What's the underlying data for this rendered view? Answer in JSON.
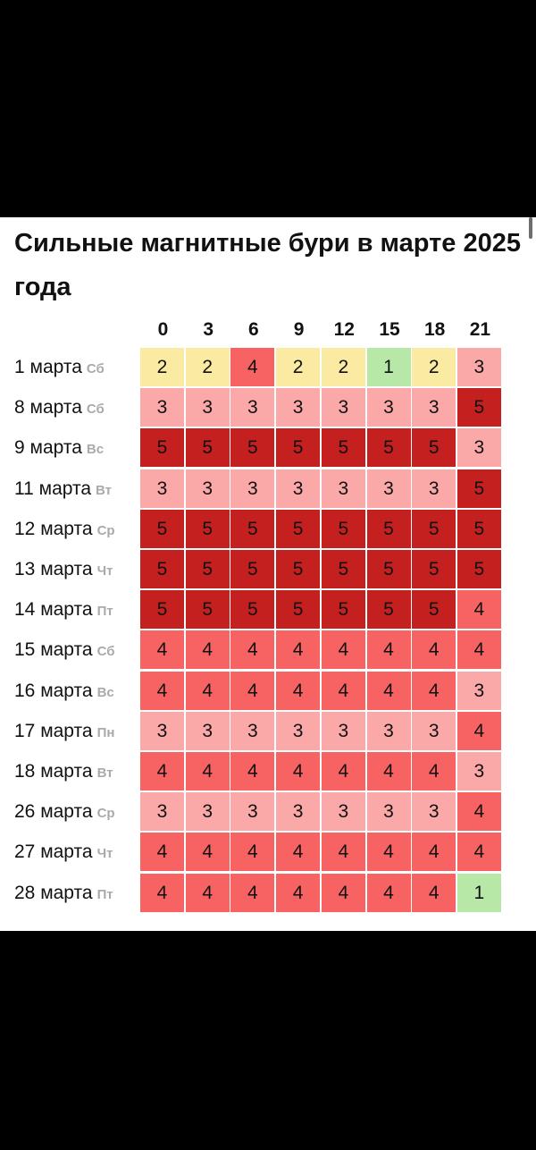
{
  "title": "Сильные магнитные бури в марте 2025 года",
  "colors": {
    "kp1": "#b8e8a8",
    "kp2": "#faeaa2",
    "kp3": "#fba8a8",
    "kp4": "#f76363",
    "kp5": "#c42020"
  },
  "chart_data": {
    "type": "heatmap",
    "title": "Сильные магнитные бури в марте 2025 года",
    "x": [
      "0",
      "3",
      "6",
      "9",
      "12",
      "15",
      "18",
      "21"
    ],
    "rows": [
      {
        "date": "1 марта",
        "dow": "Сб",
        "values": [
          2,
          2,
          4,
          2,
          2,
          1,
          2,
          3
        ]
      },
      {
        "date": "8 марта",
        "dow": "Сб",
        "values": [
          3,
          3,
          3,
          3,
          3,
          3,
          3,
          5
        ]
      },
      {
        "date": "9 марта",
        "dow": "Вс",
        "values": [
          5,
          5,
          5,
          5,
          5,
          5,
          5,
          3
        ]
      },
      {
        "date": "11 марта",
        "dow": "Вт",
        "values": [
          3,
          3,
          3,
          3,
          3,
          3,
          3,
          5
        ]
      },
      {
        "date": "12 марта",
        "dow": "Ср",
        "values": [
          5,
          5,
          5,
          5,
          5,
          5,
          5,
          5
        ]
      },
      {
        "date": "13 марта",
        "dow": "Чт",
        "values": [
          5,
          5,
          5,
          5,
          5,
          5,
          5,
          5
        ]
      },
      {
        "date": "14 марта",
        "dow": "Пт",
        "values": [
          5,
          5,
          5,
          5,
          5,
          5,
          5,
          4
        ]
      },
      {
        "date": "15 марта",
        "dow": "Сб",
        "values": [
          4,
          4,
          4,
          4,
          4,
          4,
          4,
          4
        ]
      },
      {
        "date": "16 марта",
        "dow": "Вс",
        "values": [
          4,
          4,
          4,
          4,
          4,
          4,
          4,
          3
        ]
      },
      {
        "date": "17 марта",
        "dow": "Пн",
        "values": [
          3,
          3,
          3,
          3,
          3,
          3,
          3,
          4
        ]
      },
      {
        "date": "18 марта",
        "dow": "Вт",
        "values": [
          4,
          4,
          4,
          4,
          4,
          4,
          4,
          3
        ]
      },
      {
        "date": "26 марта",
        "dow": "Ср",
        "values": [
          3,
          3,
          3,
          3,
          3,
          3,
          3,
          4
        ]
      },
      {
        "date": "27 марта",
        "dow": "Чт",
        "values": [
          4,
          4,
          4,
          4,
          4,
          4,
          4,
          4
        ]
      },
      {
        "date": "28 марта",
        "dow": "Пт",
        "values": [
          4,
          4,
          4,
          4,
          4,
          4,
          4,
          1
        ]
      }
    ]
  }
}
